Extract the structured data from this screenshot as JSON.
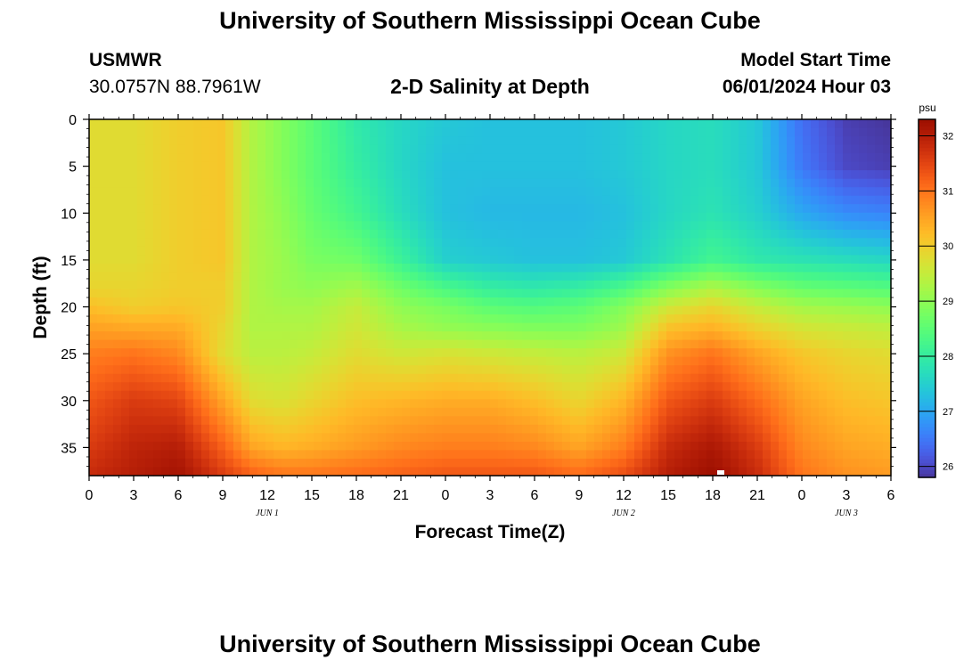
{
  "header": {
    "title": "University of Southern Mississippi Ocean Cube",
    "station": "USMWR",
    "coordinates": "30.0757N  88.7961W",
    "subtitle": "2-D Salinity at Depth",
    "start_label": "Model Start Time",
    "start_value": "06/01/2024 Hour 03"
  },
  "footer": {
    "title": "University of Southern Mississippi Ocean Cube"
  },
  "chart_data": {
    "type": "heatmap",
    "title": "2-D Salinity at Depth",
    "xlabel": "Forecast Time(Z)",
    "ylabel": "Depth (ft)",
    "x_ticks": [
      "0",
      "3",
      "6",
      "9",
      "12",
      "15",
      "18",
      "21",
      "0",
      "3",
      "6",
      "9",
      "12",
      "15",
      "18",
      "21",
      "0",
      "3",
      "6"
    ],
    "x_tick_hours": [
      0,
      3,
      6,
      9,
      12,
      15,
      18,
      21,
      24,
      27,
      30,
      33,
      36,
      39,
      42,
      45,
      48,
      51,
      54
    ],
    "day_labels": [
      {
        "label": "JUN 1",
        "hour": 12
      },
      {
        "label": "JUN 2",
        "hour": 36
      },
      {
        "label": "JUN 3",
        "hour": 51
      }
    ],
    "xlim": [
      0,
      54
    ],
    "y_ticks": [
      0,
      5,
      10,
      15,
      20,
      25,
      30,
      35
    ],
    "ylim": [
      0,
      38
    ],
    "y_inverted": true,
    "colorbar": {
      "unit": "psu",
      "ticks": [
        26,
        27,
        28,
        29,
        30,
        31,
        32
      ],
      "range": [
        25.8,
        32.3
      ],
      "colormap": "turbo"
    },
    "salinity_profiles": [
      {
        "hour": 0,
        "depth": [
          0,
          5,
          10,
          15,
          18,
          20,
          22,
          25,
          30,
          35,
          38
        ],
        "psu": [
          29.8,
          29.8,
          29.8,
          29.8,
          29.9,
          30.2,
          30.5,
          30.9,
          31.3,
          31.6,
          31.8
        ]
      },
      {
        "hour": 3,
        "depth": [
          0,
          5,
          10,
          15,
          18,
          20,
          22,
          25,
          30,
          35,
          38
        ],
        "psu": [
          29.8,
          29.8,
          29.8,
          29.8,
          29.9,
          30.0,
          30.4,
          31.0,
          31.6,
          31.9,
          32.0
        ]
      },
      {
        "hour": 6,
        "depth": [
          0,
          5,
          10,
          15,
          18,
          20,
          22,
          25,
          30,
          35,
          38
        ],
        "psu": [
          30.0,
          30.0,
          30.0,
          30.0,
          30.0,
          30.1,
          30.4,
          30.8,
          31.5,
          32.0,
          32.2
        ]
      },
      {
        "hour": 9,
        "depth": [
          0,
          5,
          10,
          15,
          18,
          20,
          22,
          25,
          30,
          35,
          38
        ],
        "psu": [
          30.1,
          30.1,
          30.1,
          30.1,
          30.0,
          30.0,
          29.9,
          29.8,
          30.5,
          31.2,
          31.6
        ]
      },
      {
        "hour": 11,
        "depth": [
          0,
          5,
          10,
          15,
          18,
          20,
          22,
          25,
          30,
          35,
          38
        ],
        "psu": [
          29.3,
          29.3,
          29.3,
          29.3,
          29.3,
          29.3,
          29.3,
          29.4,
          29.8,
          30.5,
          31.2
        ]
      },
      {
        "hour": 13,
        "depth": [
          0,
          5,
          10,
          15,
          18,
          20,
          22,
          25,
          30,
          35,
          38
        ],
        "psu": [
          28.9,
          28.9,
          29.0,
          29.1,
          29.1,
          29.2,
          29.3,
          29.4,
          29.7,
          30.3,
          31.0
        ]
      },
      {
        "hour": 15,
        "depth": [
          0,
          5,
          10,
          15,
          18,
          20,
          22,
          25,
          30,
          35,
          38
        ],
        "psu": [
          28.5,
          28.5,
          28.6,
          28.8,
          29.0,
          29.2,
          29.3,
          29.5,
          29.9,
          30.4,
          31.0
        ]
      },
      {
        "hour": 18,
        "depth": [
          0,
          5,
          10,
          15,
          18,
          20,
          22,
          25,
          30,
          35,
          38
        ],
        "psu": [
          27.9,
          28.0,
          28.2,
          28.7,
          29.2,
          29.5,
          29.6,
          29.8,
          30.2,
          30.6,
          31.1
        ]
      },
      {
        "hour": 21,
        "depth": [
          0,
          5,
          10,
          15,
          18,
          20,
          22,
          25,
          30,
          35,
          38
        ],
        "psu": [
          27.6,
          27.6,
          27.7,
          28.1,
          28.7,
          29.0,
          29.2,
          29.6,
          30.3,
          30.8,
          31.2
        ]
      },
      {
        "hour": 24,
        "depth": [
          0,
          5,
          10,
          15,
          18,
          20,
          22,
          25,
          30,
          35,
          38
        ],
        "psu": [
          27.4,
          27.3,
          27.3,
          27.5,
          28.3,
          28.8,
          29.0,
          29.7,
          30.4,
          30.9,
          31.3
        ]
      },
      {
        "hour": 27,
        "depth": [
          0,
          5,
          10,
          15,
          18,
          20,
          22,
          25,
          30,
          35,
          38
        ],
        "psu": [
          27.3,
          27.3,
          27.2,
          27.4,
          28.0,
          28.5,
          28.9,
          29.6,
          30.4,
          30.9,
          31.3
        ]
      },
      {
        "hour": 30,
        "depth": [
          0,
          5,
          10,
          15,
          18,
          20,
          22,
          25,
          30,
          35,
          38
        ],
        "psu": [
          27.3,
          27.3,
          27.2,
          27.3,
          27.9,
          28.4,
          28.8,
          29.5,
          30.2,
          30.8,
          31.3
        ]
      },
      {
        "hour": 33,
        "depth": [
          0,
          5,
          10,
          15,
          18,
          20,
          22,
          25,
          30,
          35,
          38
        ],
        "psu": [
          27.3,
          27.3,
          27.2,
          27.3,
          28.0,
          28.5,
          28.8,
          29.4,
          29.9,
          30.5,
          31.1
        ]
      },
      {
        "hour": 36,
        "depth": [
          0,
          5,
          10,
          15,
          18,
          20,
          22,
          25,
          30,
          35,
          38
        ],
        "psu": [
          27.4,
          27.4,
          27.3,
          27.4,
          28.3,
          28.9,
          29.1,
          29.6,
          30.3,
          30.9,
          31.4
        ]
      },
      {
        "hour": 39,
        "depth": [
          0,
          5,
          10,
          15,
          18,
          20,
          22,
          25,
          30,
          35,
          38
        ],
        "psu": [
          27.6,
          27.6,
          27.6,
          27.8,
          28.9,
          29.6,
          30.1,
          30.7,
          31.3,
          31.8,
          32.0
        ]
      },
      {
        "hour": 42,
        "depth": [
          0,
          5,
          10,
          15,
          18,
          20,
          22,
          25,
          30,
          35,
          38
        ],
        "psu": [
          27.7,
          27.7,
          27.8,
          28.2,
          29.3,
          29.9,
          30.3,
          31.0,
          31.6,
          32.1,
          32.3
        ]
      },
      {
        "hour": 45,
        "depth": [
          0,
          5,
          10,
          15,
          18,
          20,
          22,
          25,
          30,
          35,
          38
        ],
        "psu": [
          27.4,
          27.4,
          27.5,
          27.9,
          28.9,
          29.5,
          29.9,
          30.5,
          31.1,
          31.6,
          31.8
        ]
      },
      {
        "hour": 48,
        "depth": [
          0,
          5,
          10,
          15,
          18,
          20,
          22,
          25,
          30,
          35,
          38
        ],
        "psu": [
          26.4,
          26.5,
          27.0,
          27.8,
          28.6,
          29.2,
          29.6,
          30.1,
          30.5,
          30.8,
          31.0
        ]
      },
      {
        "hour": 51,
        "depth": [
          0,
          5,
          10,
          15,
          18,
          20,
          22,
          25,
          30,
          35,
          38
        ],
        "psu": [
          25.9,
          26.0,
          26.7,
          27.7,
          28.5,
          29.1,
          29.5,
          29.9,
          30.2,
          30.5,
          30.7
        ]
      },
      {
        "hour": 54,
        "depth": [
          0,
          5,
          10,
          15,
          18,
          20,
          22,
          25,
          30,
          35,
          38
        ],
        "psu": [
          25.8,
          25.9,
          26.6,
          27.6,
          28.4,
          29.0,
          29.4,
          29.8,
          30.1,
          30.4,
          30.6
        ]
      }
    ]
  }
}
